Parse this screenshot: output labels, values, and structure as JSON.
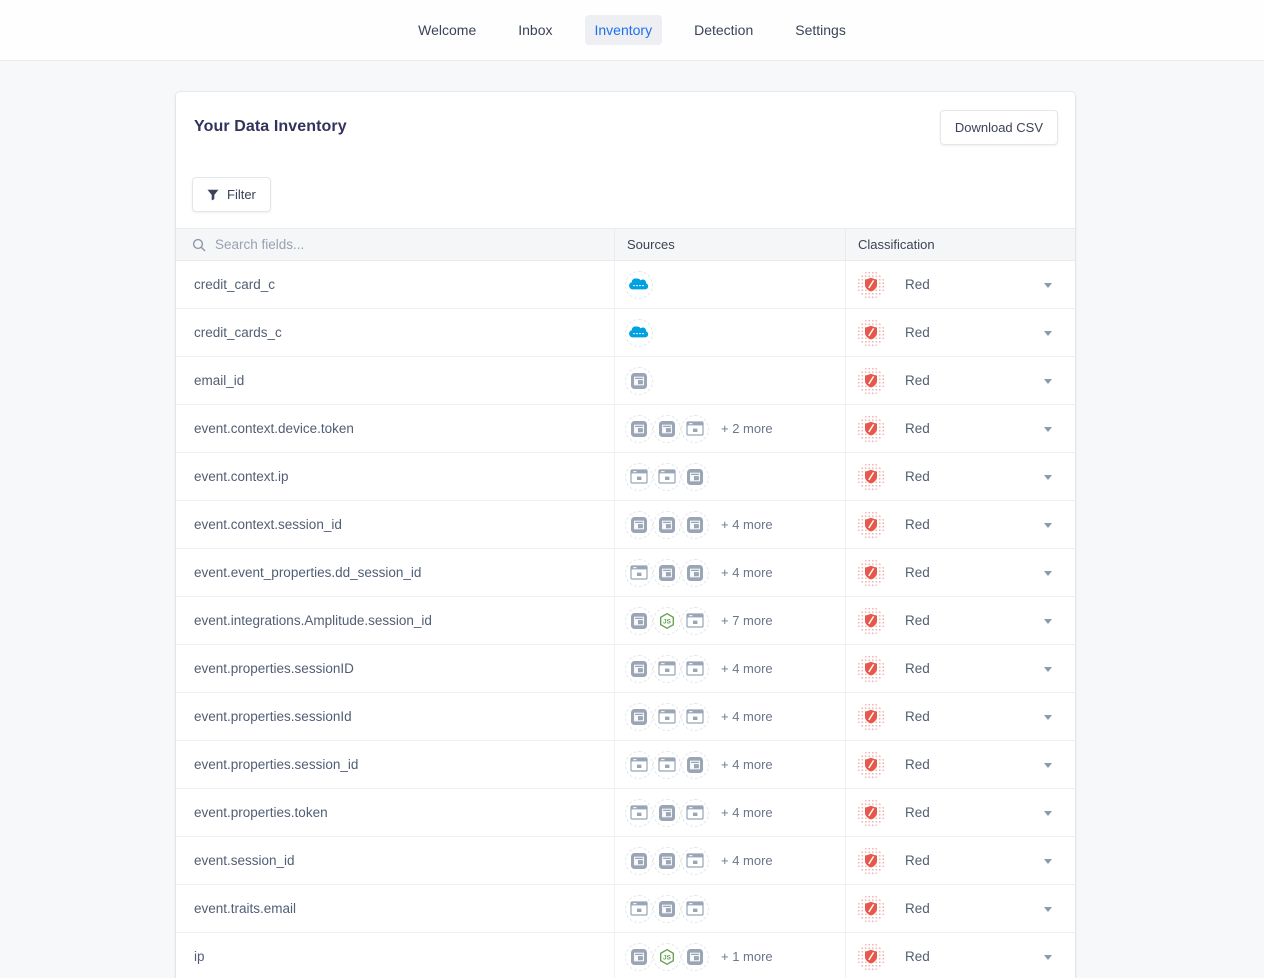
{
  "nav": {
    "items": [
      {
        "label": "Welcome",
        "active": false
      },
      {
        "label": "Inbox",
        "active": false
      },
      {
        "label": "Inventory",
        "active": true
      },
      {
        "label": "Detection",
        "active": false
      },
      {
        "label": "Settings",
        "active": false
      }
    ]
  },
  "header": {
    "title": "Your Data Inventory",
    "download_button": "Download CSV"
  },
  "toolbar": {
    "filter_button": "Filter"
  },
  "table": {
    "search_placeholder": "Search fields...",
    "columns": {
      "sources": "Sources",
      "classification": "Classification"
    },
    "rows": [
      {
        "field": "credit_card_c",
        "sources": [
          "salesforce-icon"
        ],
        "more": "",
        "classification": "Red"
      },
      {
        "field": "credit_cards_c",
        "sources": [
          "salesforce-icon"
        ],
        "more": "",
        "classification": "Red"
      },
      {
        "field": "email_id",
        "sources": [
          "app-window-filled-icon"
        ],
        "more": "",
        "classification": "Red"
      },
      {
        "field": "event.context.device.token",
        "sources": [
          "app-window-filled-icon",
          "app-window-filled-icon",
          "browser-window-icon"
        ],
        "more": "+ 2 more",
        "classification": "Red"
      },
      {
        "field": "event.context.ip",
        "sources": [
          "browser-window-icon",
          "browser-window-icon",
          "app-window-filled-icon"
        ],
        "more": "",
        "classification": "Red"
      },
      {
        "field": "event.context.session_id",
        "sources": [
          "app-window-filled-icon",
          "app-window-filled-icon",
          "app-window-filled-icon"
        ],
        "more": "+ 4 more",
        "classification": "Red"
      },
      {
        "field": "event.event_properties.dd_session_id",
        "sources": [
          "browser-window-icon",
          "app-window-filled-icon",
          "app-window-filled-icon"
        ],
        "more": "+ 4 more",
        "classification": "Red"
      },
      {
        "field": "event.integrations.Amplitude.session_id",
        "sources": [
          "app-window-filled-icon",
          "nodejs-icon",
          "browser-window-icon"
        ],
        "more": "+ 7 more",
        "classification": "Red"
      },
      {
        "field": "event.properties.sessionID",
        "sources": [
          "app-window-filled-icon",
          "browser-window-icon",
          "browser-window-icon"
        ],
        "more": "+ 4 more",
        "classification": "Red"
      },
      {
        "field": "event.properties.sessionId",
        "sources": [
          "app-window-filled-icon",
          "browser-window-icon",
          "browser-window-icon"
        ],
        "more": "+ 4 more",
        "classification": "Red"
      },
      {
        "field": "event.properties.session_id",
        "sources": [
          "browser-window-icon",
          "browser-window-icon",
          "app-window-filled-icon"
        ],
        "more": "+ 4 more",
        "classification": "Red"
      },
      {
        "field": "event.properties.token",
        "sources": [
          "browser-window-icon",
          "app-window-filled-icon",
          "browser-window-icon"
        ],
        "more": "+ 4 more",
        "classification": "Red"
      },
      {
        "field": "event.session_id",
        "sources": [
          "app-window-filled-icon",
          "app-window-filled-icon",
          "browser-window-icon"
        ],
        "more": "+ 4 more",
        "classification": "Red"
      },
      {
        "field": "event.traits.email",
        "sources": [
          "browser-window-icon",
          "app-window-filled-icon",
          "browser-window-icon"
        ],
        "more": "",
        "classification": "Red"
      },
      {
        "field": "ip",
        "sources": [
          "app-window-filled-icon",
          "nodejs-icon",
          "app-window-filled-icon"
        ],
        "more": "+ 1 more",
        "classification": "Red"
      }
    ]
  },
  "colors": {
    "active_nav_blue": "#1f6ff0",
    "salesforce_blue": "#00a1e0",
    "nodejs_green": "#5fa04e",
    "classification_red": "#e4584e"
  }
}
